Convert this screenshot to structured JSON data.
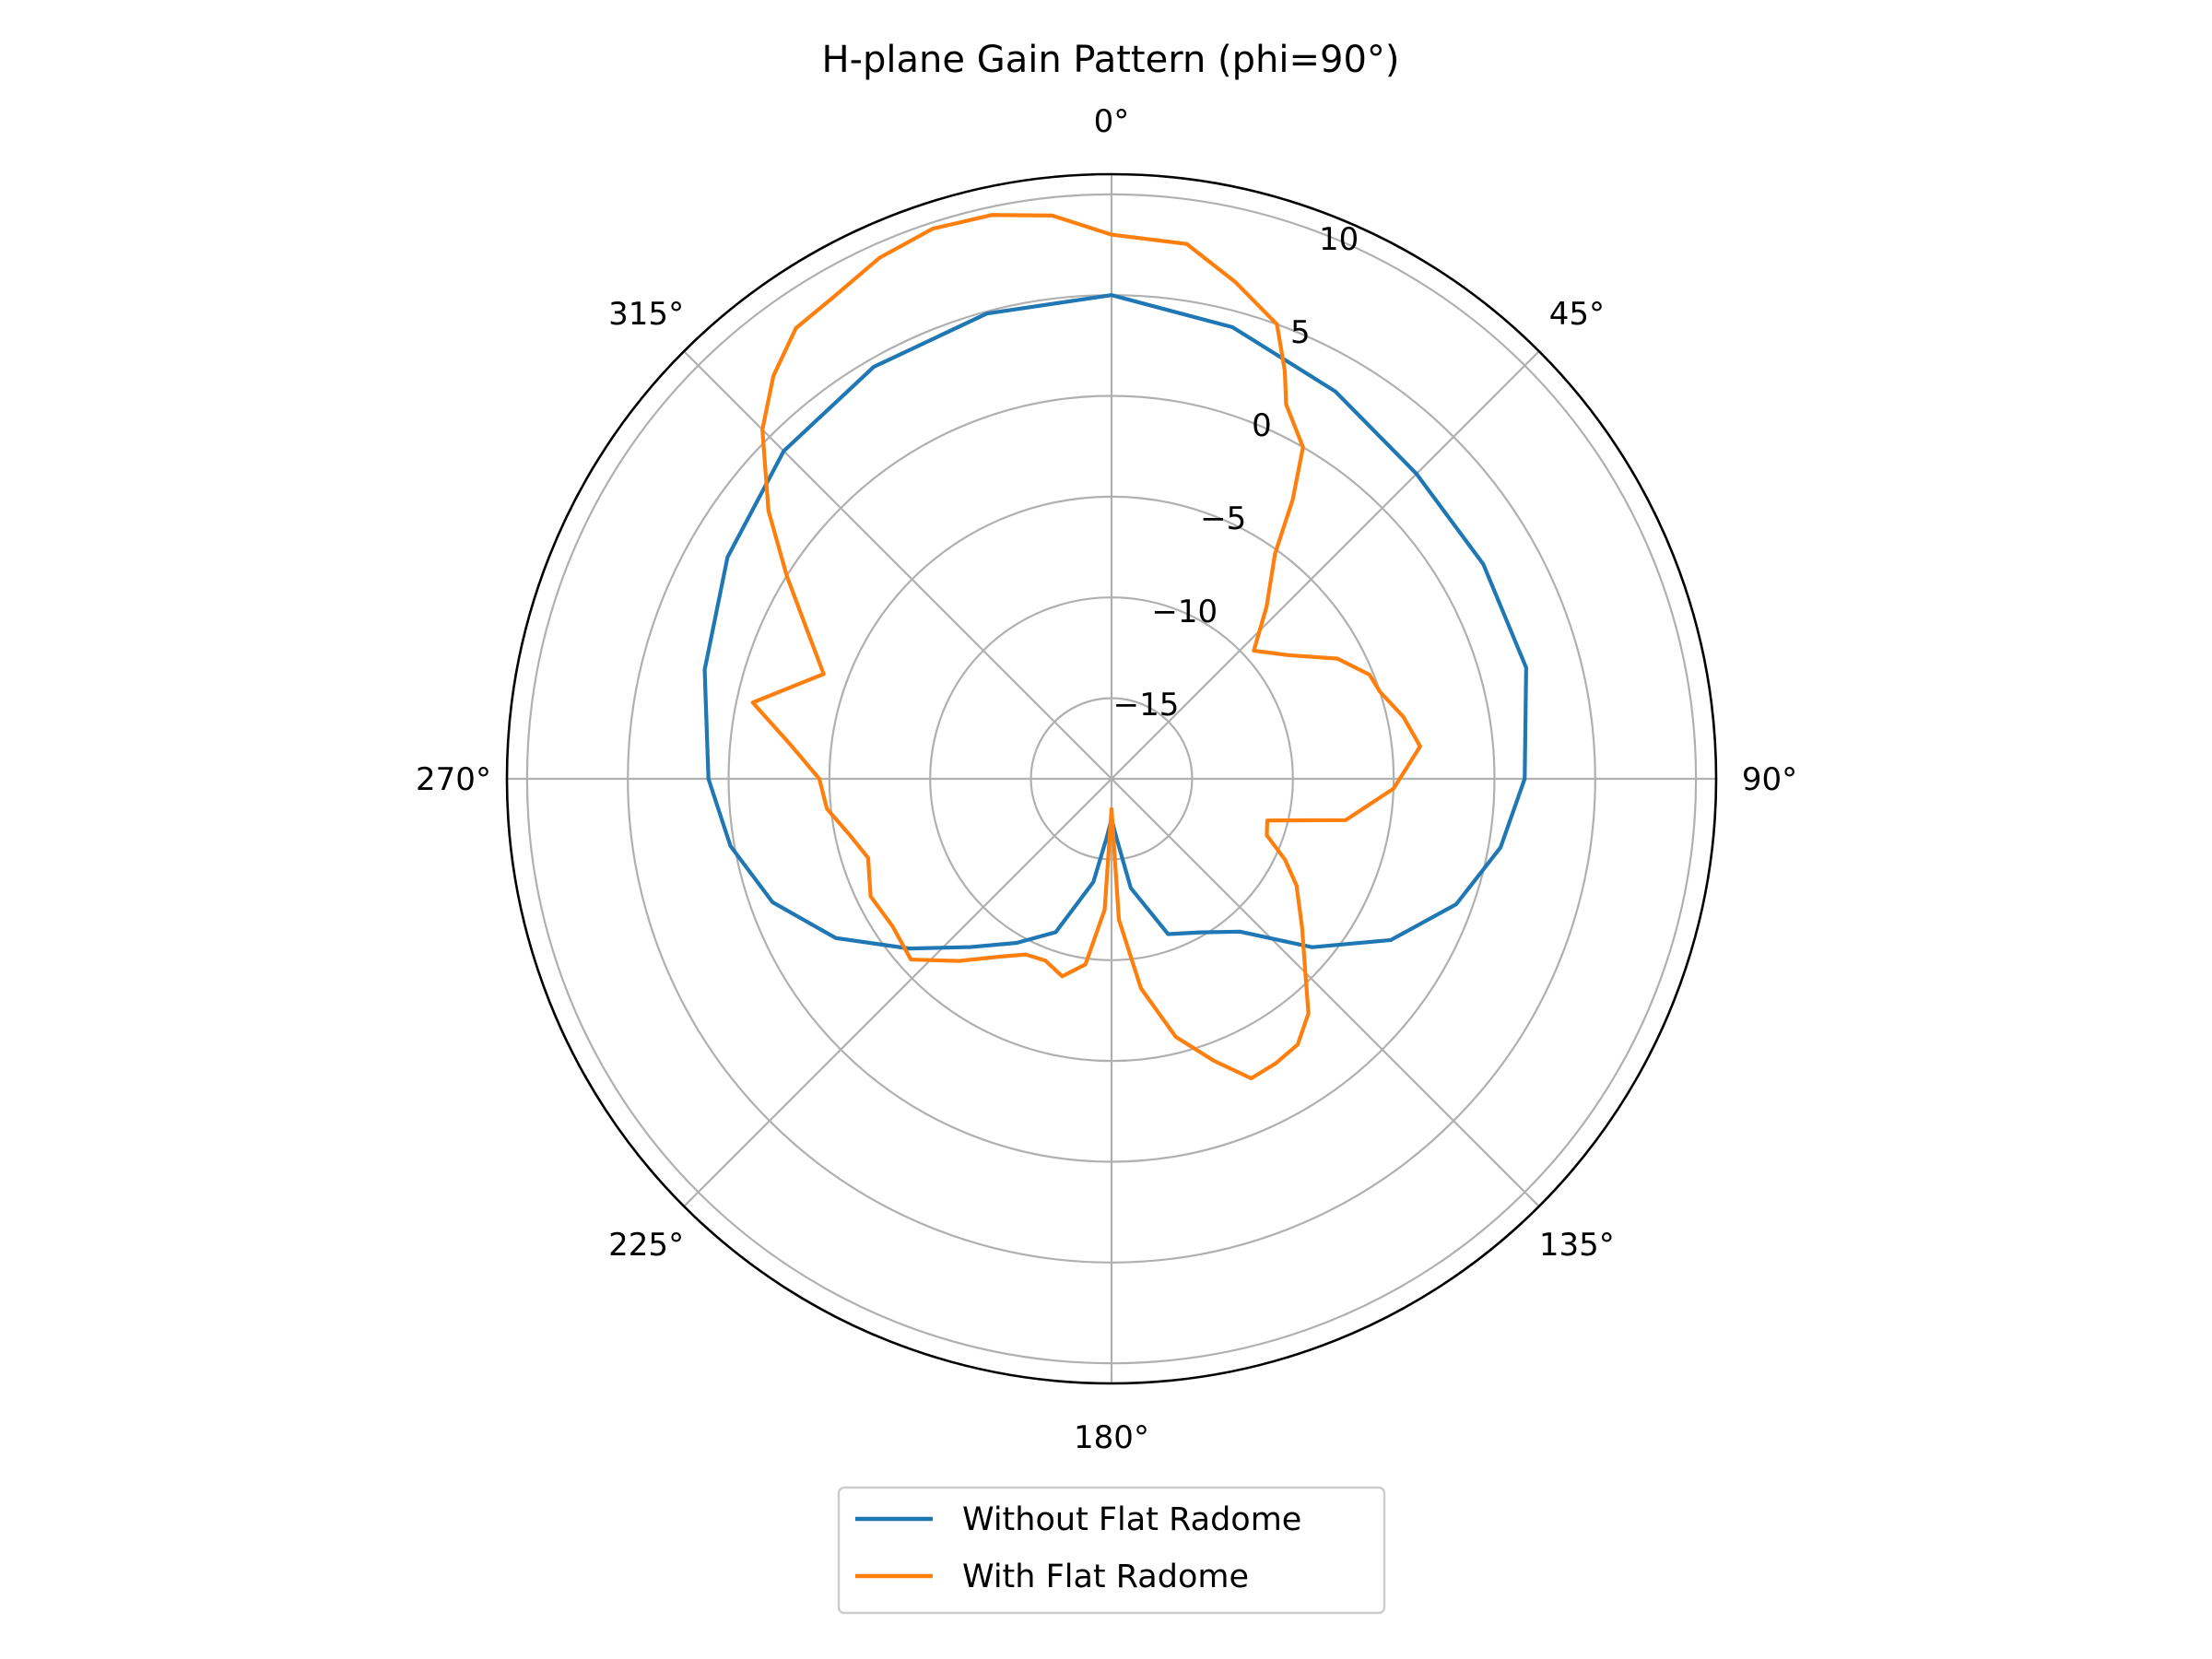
{
  "chart_data": {
    "type": "polar-line",
    "title": "H-plane Gain Pattern (phi=90°)",
    "angle_unit": "degrees",
    "theta_zero_location": "top",
    "theta_direction": "clockwise",
    "angle_ticks": [
      0,
      45,
      90,
      135,
      180,
      225,
      270,
      315
    ],
    "angle_tick_labels": [
      "0°",
      "45°",
      "90°",
      "135°",
      "180°",
      "225°",
      "270°",
      "315°"
    ],
    "r_lim": [
      -19,
      11
    ],
    "r_ticks": [
      -15,
      -10,
      -5,
      0,
      5,
      10
    ],
    "r_tick_labels": [
      "−15",
      "−10",
      "−5",
      "0",
      "5",
      "10"
    ],
    "r_label_angle_deg": 22.5,
    "grid": true,
    "legend": {
      "placement": "bottom-center",
      "entries": [
        "Without Flat Radome",
        "With Flat Radome"
      ]
    },
    "series": [
      {
        "name": "Without Flat Radome",
        "color": "#1f77b4",
        "theta": [
          0,
          15,
          30,
          45,
          60,
          75,
          90,
          100,
          110,
          120,
          130,
          140,
          150,
          160,
          170,
          175,
          180,
          185,
          190,
          200,
          210,
          220,
          230,
          240,
          250,
          260,
          270,
          285,
          300,
          315,
          330,
          345,
          360
        ],
        "r": [
          5.0,
          4.2,
          3.2,
          2.4,
          2.3,
          2.3,
          1.5,
          0.6,
          -0.8,
          -3.0,
          -6.0,
          -9.1,
          -10.2,
          -10.8,
          -13.5,
          -16.0,
          -17.0,
          -16.0,
          -13.8,
          -10.9,
          -9.6,
          -8.1,
          -5.9,
          -3.2,
          -1.1,
          0.2,
          1.0,
          1.9,
          3.0,
          4.0,
          4.6,
          4.9,
          5.0
        ]
      },
      {
        "name": "With Flat Radome",
        "color": "#ff7f0e",
        "theta": [
          0,
          8,
          14,
          20,
          23,
          25,
          30,
          33,
          36,
          42,
          48,
          55,
          62,
          68,
          72,
          78,
          84,
          92,
          100,
          105,
          110,
          115,
          120,
          128,
          135,
          140,
          145,
          150,
          155,
          160,
          166,
          172,
          177,
          180,
          183,
          188,
          194,
          200,
          206,
          212,
          220,
          228,
          236,
          244,
          252,
          258,
          264,
          270,
          276,
          282,
          290,
          296,
          302,
          308,
          315,
          320,
          325,
          330,
          336,
          342,
          348,
          354,
          360
        ],
        "r": [
          8.0,
          7.8,
          6.4,
          5.0,
          3.0,
          1.5,
          0.0,
          -2.5,
          -5.2,
          -7.5,
          -9.5,
          -8.3,
          -6.3,
          -5.2,
          -5.0,
          -4.2,
          -3.6,
          -5.0,
          -7.2,
          -11.0,
          -10.8,
          -9.5,
          -8.4,
          -7.0,
          -5.4,
          -3.8,
          -2.9,
          -2.7,
          -2.6,
          -4.1,
          -5.8,
          -8.5,
          -12.0,
          -17.5,
          -12.5,
          -9.7,
          -8.9,
          -9.4,
          -9.3,
          -8.6,
          -7.2,
          -5.6,
          -5.9,
          -5.7,
          -6.3,
          -5.7,
          -4.8,
          -4.5,
          -3.0,
          -0.8,
          -3.8,
          -2.2,
          0.0,
          2.6,
          5.5,
          7.1,
          8.3,
          8.6,
          9.3,
          9.7,
          9.6,
          9.1,
          8.0
        ]
      }
    ]
  }
}
